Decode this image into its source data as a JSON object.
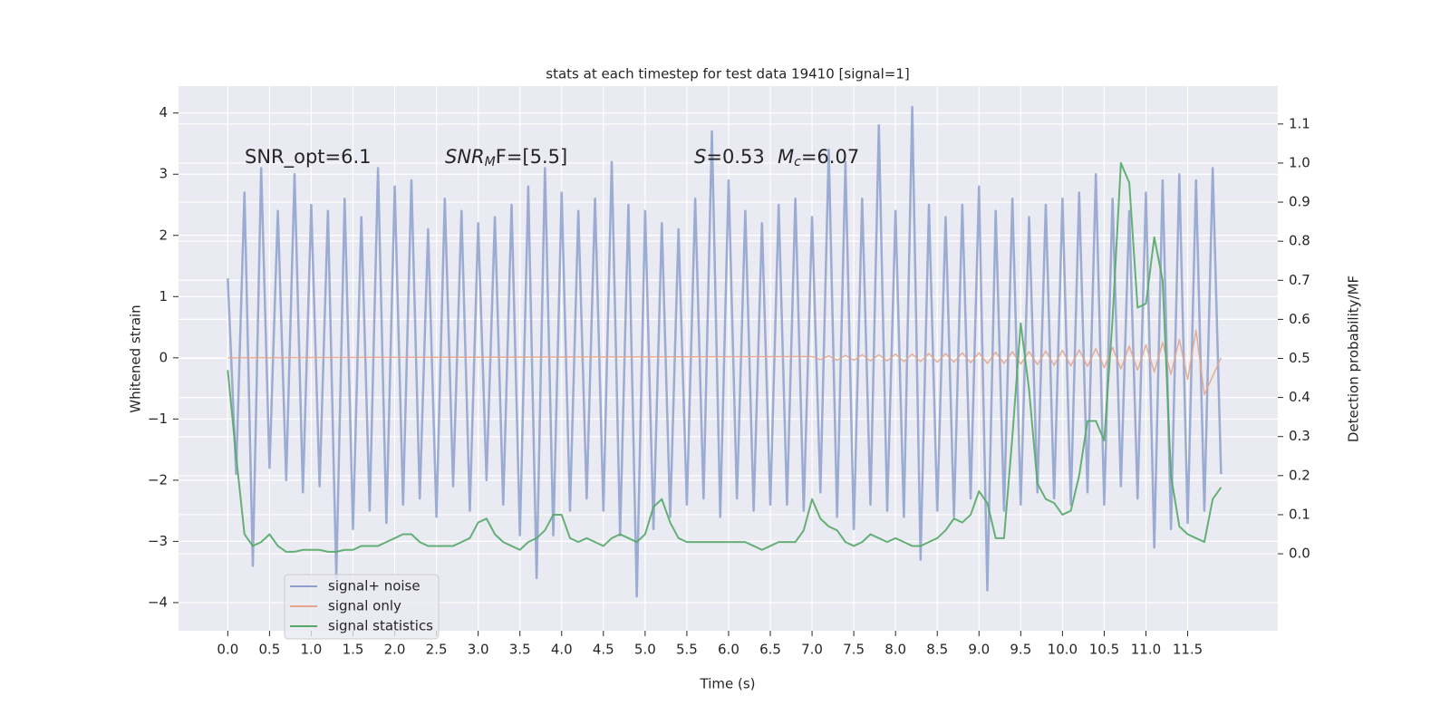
{
  "chart_data": {
    "type": "line",
    "title": "stats at each timestep for test data 19410 [signal=1]",
    "xlabel": "Time (s)",
    "ylabel": "Whitened strain",
    "y2label": "Detection probability/MF",
    "annotations": [
      {
        "main": "SNR_opt=6.1"
      },
      {
        "main": "SNR",
        "sub": "M",
        "rest": "F=[5.5]"
      },
      {
        "main": "S",
        "rest": "=0.53"
      },
      {
        "main": "M",
        "sub": "c",
        "rest": "=6.07"
      }
    ],
    "xlim": [
      -0.59,
      12.58
    ],
    "ylim": [
      -4.46,
      4.44
    ],
    "y2lim": [
      -0.197,
      1.197
    ],
    "xticks": [
      {
        "value": 0,
        "label": "0.0"
      },
      {
        "value": 0.5,
        "label": "0.5"
      },
      {
        "value": 1,
        "label": "1.0"
      },
      {
        "value": 1.5,
        "label": "1.5"
      },
      {
        "value": 2,
        "label": "2.0"
      },
      {
        "value": 2.5,
        "label": "2.5"
      },
      {
        "value": 3,
        "label": "3.0"
      },
      {
        "value": 3.5,
        "label": "3.5"
      },
      {
        "value": 4,
        "label": "4.0"
      },
      {
        "value": 4.5,
        "label": "4.5"
      },
      {
        "value": 5,
        "label": "5.0"
      },
      {
        "value": 5.5,
        "label": "5.5"
      },
      {
        "value": 6,
        "label": "6.0"
      },
      {
        "value": 6.5,
        "label": "6.5"
      },
      {
        "value": 7,
        "label": "7.0"
      },
      {
        "value": 7.5,
        "label": "7.5"
      },
      {
        "value": 8,
        "label": "8.0"
      },
      {
        "value": 8.5,
        "label": "8.5"
      },
      {
        "value": 9,
        "label": "9.0"
      },
      {
        "value": 9.5,
        "label": "9.5"
      },
      {
        "value": 10,
        "label": "10.0"
      },
      {
        "value": 10.5,
        "label": "10.5"
      },
      {
        "value": 11,
        "label": "11.0"
      },
      {
        "value": 11.5,
        "label": "11.5"
      }
    ],
    "yticks": [
      {
        "value": -4,
        "label": "−4"
      },
      {
        "value": -3,
        "label": "−3"
      },
      {
        "value": -2,
        "label": "−2"
      },
      {
        "value": -1,
        "label": "−1"
      },
      0,
      1,
      2,
      3,
      4
    ],
    "y2ticks": [
      {
        "value": 0,
        "label": "0.0"
      },
      {
        "value": 0.1,
        "label": "0.1"
      },
      {
        "value": 0.2,
        "label": "0.2"
      },
      {
        "value": 0.3,
        "label": "0.3"
      },
      {
        "value": 0.4,
        "label": "0.4"
      },
      {
        "value": 0.5,
        "label": "0.5"
      },
      {
        "value": 0.6,
        "label": "0.6"
      },
      {
        "value": 0.7,
        "label": "0.7"
      },
      {
        "value": 0.8,
        "label": "0.8"
      },
      {
        "value": 0.9,
        "label": "0.9"
      },
      {
        "value": 1,
        "label": "1.0"
      },
      {
        "value": 1.1,
        "label": "1.1"
      }
    ],
    "grid": true,
    "legend": "lower left",
    "series": [
      {
        "name": "signal+ noise",
        "color": "#8da0cb",
        "axis": "y",
        "x": [
          0,
          0.1,
          0.2,
          0.3,
          0.4,
          0.5,
          0.6,
          0.7,
          0.8,
          0.9,
          1,
          1.1,
          1.2,
          1.3,
          1.4,
          1.5,
          1.6,
          1.7,
          1.8,
          1.9,
          2,
          2.1,
          2.2,
          2.3,
          2.4,
          2.5,
          2.6,
          2.7,
          2.8,
          2.9,
          3,
          3.1,
          3.2,
          3.3,
          3.4,
          3.5,
          3.6,
          3.7,
          3.8,
          3.9,
          4,
          4.1,
          4.2,
          4.3,
          4.4,
          4.5,
          4.6,
          4.7,
          4.8,
          4.9,
          5,
          5.1,
          5.2,
          5.3,
          5.4,
          5.5,
          5.6,
          5.7,
          5.8,
          5.9,
          6,
          6.1,
          6.2,
          6.3,
          6.4,
          6.5,
          6.6,
          6.7,
          6.8,
          6.9,
          7,
          7.1,
          7.2,
          7.3,
          7.4,
          7.5,
          7.6,
          7.7,
          7.8,
          7.9,
          8,
          8.1,
          8.2,
          8.3,
          8.4,
          8.5,
          8.6,
          8.7,
          8.8,
          8.9,
          9,
          9.1,
          9.2,
          9.3,
          9.4,
          9.5,
          9.6,
          9.7,
          9.8,
          9.9,
          10,
          10.1,
          10.2,
          10.3,
          10.4,
          10.5,
          10.6,
          10.7,
          10.8,
          10.9,
          11,
          11.1,
          11.2,
          11.3,
          11.4,
          11.5,
          11.6,
          11.7,
          11.8,
          11.9
        ],
        "values": [
          1.3,
          -1.9,
          2.7,
          -3.4,
          3.1,
          -1.8,
          2.4,
          -2.0,
          3.0,
          -2.2,
          2.5,
          -2.1,
          2.4,
          -3.6,
          2.6,
          -2.8,
          2.3,
          -2.5,
          3.1,
          -2.7,
          2.8,
          -2.4,
          2.9,
          -2.3,
          2.1,
          -2.6,
          2.6,
          -2.1,
          2.4,
          -2.5,
          2.2,
          -2.0,
          2.3,
          -2.4,
          2.5,
          -2.9,
          2.8,
          -3.6,
          3.1,
          -2.9,
          2.7,
          -2.5,
          2.4,
          -2.3,
          2.6,
          -2.5,
          3.2,
          -2.9,
          2.5,
          -3.9,
          2.4,
          -2.8,
          2.2,
          -2.6,
          2.1,
          -2.4,
          2.6,
          -2.3,
          3.7,
          -2.6,
          2.9,
          -2.3,
          2.4,
          -2.5,
          2.2,
          -2.4,
          2.5,
          -2.4,
          2.6,
          -2.5,
          2.3,
          -2.2,
          3.4,
          -2.6,
          3.2,
          -2.8,
          2.6,
          -2.4,
          3.8,
          -2.5,
          2.4,
          -2.6,
          4.1,
          -3.3,
          2.5,
          -2.5,
          2.3,
          -2.6,
          2.5,
          -2.3,
          2.8,
          -3.8,
          2.4,
          -2.5,
          2.6,
          -2.4,
          2.3,
          -2.2,
          2.5,
          -2.3,
          2.6,
          -2.4,
          2.7,
          -2.2,
          3.0,
          -2.4,
          2.6,
          -2.1,
          2.4,
          -2.3,
          2.7,
          -3.1,
          2.9,
          -2.8,
          3.0,
          -2.7,
          2.9,
          -2.5,
          3.1,
          -1.9
        ]
      },
      {
        "name": "signal only",
        "color": "#e5a58c",
        "axis": "y",
        "x": [
          0,
          7,
          7.1,
          7.2,
          7.3,
          7.4,
          7.5,
          7.6,
          7.7,
          7.8,
          7.9,
          8,
          8.1,
          8.2,
          8.3,
          8.4,
          8.5,
          8.6,
          8.7,
          8.8,
          8.9,
          9,
          9.1,
          9.2,
          9.3,
          9.4,
          9.5,
          9.6,
          9.7,
          9.8,
          9.9,
          10,
          10.1,
          10.2,
          10.3,
          10.4,
          10.5,
          10.6,
          10.7,
          10.8,
          10.9,
          11,
          11.1,
          11.2,
          11.3,
          11.4,
          11.5,
          11.6,
          11.7,
          11.9
        ],
        "values": [
          0,
          0.02,
          -0.03,
          0.03,
          -0.04,
          0.04,
          -0.04,
          0.05,
          -0.05,
          0.05,
          -0.05,
          0.06,
          -0.06,
          0.06,
          -0.06,
          0.07,
          -0.07,
          0.07,
          -0.07,
          0.08,
          -0.08,
          0.08,
          -0.09,
          0.09,
          -0.09,
          0.1,
          -0.1,
          0.1,
          -0.11,
          0.11,
          -0.12,
          0.12,
          -0.13,
          0.13,
          -0.14,
          0.15,
          -0.16,
          0.17,
          -0.18,
          0.19,
          -0.2,
          0.21,
          -0.23,
          0.25,
          -0.27,
          0.3,
          -0.35,
          0.45,
          -0.6,
          0
        ]
      },
      {
        "name": "signal statistics",
        "color": "#55a868",
        "axis": "y2",
        "x": [
          0,
          0.1,
          0.2,
          0.3,
          0.4,
          0.5,
          0.6,
          0.7,
          0.8,
          0.9,
          1,
          1.1,
          1.2,
          1.3,
          1.4,
          1.5,
          1.6,
          1.7,
          1.8,
          1.9,
          2,
          2.1,
          2.2,
          2.3,
          2.4,
          2.5,
          2.6,
          2.7,
          2.8,
          2.9,
          3,
          3.1,
          3.2,
          3.3,
          3.4,
          3.5,
          3.6,
          3.7,
          3.8,
          3.9,
          4,
          4.1,
          4.2,
          4.3,
          4.4,
          4.5,
          4.6,
          4.7,
          4.8,
          4.9,
          5,
          5.1,
          5.2,
          5.3,
          5.4,
          5.5,
          5.6,
          5.7,
          5.8,
          5.9,
          6,
          6.1,
          6.2,
          6.3,
          6.4,
          6.5,
          6.6,
          6.7,
          6.8,
          6.9,
          7,
          7.1,
          7.2,
          7.3,
          7.4,
          7.5,
          7.6,
          7.7,
          7.8,
          7.9,
          8,
          8.1,
          8.2,
          8.3,
          8.4,
          8.5,
          8.6,
          8.7,
          8.8,
          8.9,
          9,
          9.1,
          9.2,
          9.3,
          9.4,
          9.5,
          9.6,
          9.7,
          9.8,
          9.9,
          10,
          10.1,
          10.2,
          10.3,
          10.4,
          10.5,
          10.6,
          10.7,
          10.8,
          10.9,
          11,
          11.1,
          11.2,
          11.3,
          11.4,
          11.5,
          11.6,
          11.7,
          11.8,
          11.9
        ],
        "values": [
          0.47,
          0.25,
          0.05,
          0.02,
          0.03,
          0.05,
          0.02,
          0.005,
          0.005,
          0.01,
          0.01,
          0.01,
          0.005,
          0.005,
          0.01,
          0.01,
          0.02,
          0.02,
          0.02,
          0.03,
          0.04,
          0.05,
          0.05,
          0.03,
          0.02,
          0.02,
          0.02,
          0.02,
          0.03,
          0.04,
          0.08,
          0.09,
          0.05,
          0.03,
          0.02,
          0.01,
          0.03,
          0.04,
          0.06,
          0.1,
          0.1,
          0.04,
          0.03,
          0.04,
          0.03,
          0.02,
          0.04,
          0.05,
          0.04,
          0.03,
          0.05,
          0.12,
          0.14,
          0.08,
          0.04,
          0.03,
          0.03,
          0.03,
          0.03,
          0.03,
          0.03,
          0.03,
          0.03,
          0.02,
          0.01,
          0.02,
          0.03,
          0.03,
          0.03,
          0.06,
          0.14,
          0.09,
          0.07,
          0.06,
          0.03,
          0.02,
          0.03,
          0.05,
          0.04,
          0.03,
          0.04,
          0.03,
          0.02,
          0.02,
          0.03,
          0.04,
          0.06,
          0.09,
          0.08,
          0.1,
          0.16,
          0.13,
          0.04,
          0.04,
          0.3,
          0.59,
          0.42,
          0.18,
          0.14,
          0.13,
          0.1,
          0.11,
          0.2,
          0.34,
          0.34,
          0.29,
          0.6,
          1.0,
          0.95,
          0.63,
          0.64,
          0.81,
          0.7,
          0.2,
          0.07,
          0.05,
          0.04,
          0.03,
          0.14,
          0.17
        ]
      }
    ]
  }
}
